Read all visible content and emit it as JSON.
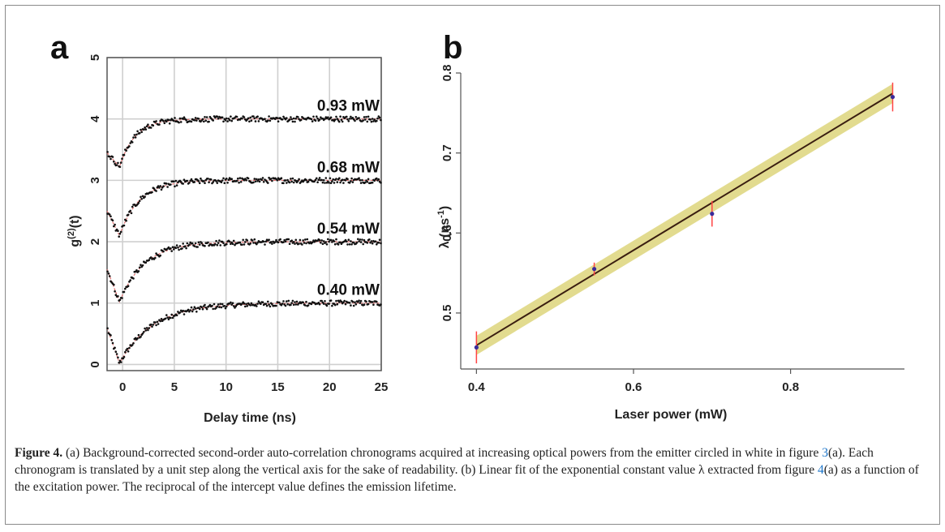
{
  "chart_data": [
    {
      "panel": "a",
      "type": "scatter",
      "xlabel": "Delay time (ns)",
      "ylabel": "g(2)(t)",
      "xlim": [
        -1.5,
        25
      ],
      "ylim": [
        -0.1,
        5
      ],
      "xticks": [
        "0",
        "5",
        "10",
        "15",
        "20",
        "25"
      ],
      "yticks": [
        "0",
        "1",
        "2",
        "3",
        "4",
        "5"
      ],
      "grid": true,
      "series": [
        {
          "name": "0.40 mW",
          "offset": 0,
          "min_at": -0.3,
          "min_value": 0.02,
          "plateau": 1.0,
          "rise_time_ns": 3.2
        },
        {
          "name": "0.54 mW",
          "offset": 1,
          "min_at": -0.3,
          "min_value": 1.02,
          "plateau": 2.0,
          "rise_time_ns": 2.4
        },
        {
          "name": "0.68 mW",
          "offset": 2,
          "min_at": -0.3,
          "min_value": 2.1,
          "plateau": 3.0,
          "rise_time_ns": 1.9
        },
        {
          "name": "0.93 mW",
          "offset": 3,
          "min_at": -0.3,
          "min_value": 3.22,
          "plateau": 4.0,
          "rise_time_ns": 1.5
        }
      ]
    },
    {
      "panel": "b",
      "type": "scatter",
      "xlabel": "Laser power (mW)",
      "ylabel": "λ (ns⁻¹)",
      "xlim": [
        0.38,
        0.945
      ],
      "ylim": [
        0.43,
        0.8
      ],
      "xticks": [
        "0.4",
        "0.6",
        "0.8"
      ],
      "yticks": [
        "0.5",
        "0.6",
        "0.7",
        "0.8"
      ],
      "grid": false,
      "points": [
        {
          "x": 0.4,
          "y": 0.457,
          "err": 0.02
        },
        {
          "x": 0.55,
          "y": 0.555,
          "err": 0.008
        },
        {
          "x": 0.7,
          "y": 0.624,
          "err": 0.016
        },
        {
          "x": 0.93,
          "y": 0.77,
          "err": 0.018
        }
      ],
      "fit": {
        "slope": 0.594,
        "intercept": 0.222,
        "band": 0.012
      }
    }
  ],
  "figure": {
    "panel_a_letter": "a",
    "panel_b_letter": "b"
  },
  "caption": {
    "label": "Figure 4.",
    "text_1": "(a) Background-corrected second-order auto-correlation chronograms acquired at increasing optical powers from the emitter circled in white in figure ",
    "ref_1": "3",
    "text_2": "(a). Each chronogram is translated by a unit step along the vertical axis for the sake of readability. (b) Linear fit of the exponential constant value λ extracted from figure ",
    "ref_2": "4",
    "text_3": "(a) as a function of the excitation power. The reciprocal of the intercept value defines the emission lifetime."
  },
  "colors": {
    "points_a": "#111111",
    "fit_a": "#e07070",
    "fit_b": "#3a1e10",
    "band_b": "#d8cf6a",
    "err_b": "#ff4444",
    "point_b": "#3a2a9a"
  }
}
